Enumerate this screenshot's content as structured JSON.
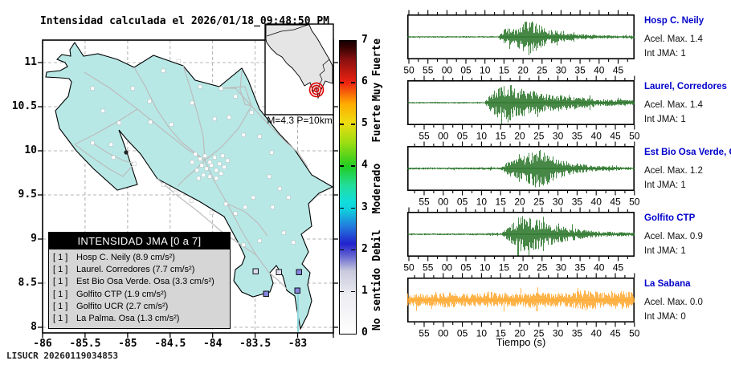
{
  "title": "Intensidad calculada el 2026/01/18_09:48:50_PM",
  "watermark": "LISUCR 20260119034853",
  "map": {
    "x_ticks": [
      "-86",
      "-85.5",
      "-85",
      "-84.5",
      "-84",
      "-83.5",
      "-83"
    ],
    "y_ticks": [
      "11",
      "10.5",
      "10",
      "9.5",
      "9",
      "8.5",
      "8"
    ],
    "land_color": "#b7e8e6",
    "road_color": "#bcbcbc",
    "inset": {
      "label": "M=4.3 P=10km",
      "epicenter_color": "#dd0000",
      "land_color": "#e5e5e5"
    },
    "legend": {
      "title": "INTENSIDAD JMA [0 a 7]",
      "entries": [
        {
          "tag": "[ 1 ]",
          "text": "Hosp C. Neily (8.9 cm/s²)"
        },
        {
          "tag": "[ 1 ]",
          "text": "Laurel. Corredores (7.7 cm/s²)"
        },
        {
          "tag": "[ 1 ]",
          "text": "Est Bio Osa Verde. Osa (3.3 cm/s²)"
        },
        {
          "tag": "[ 1 ]",
          "text": "Golfito CTP (1.9 cm/s²)"
        },
        {
          "tag": "[ 1 ]",
          "text": "Golfito UCR (2.7 cm/s²)"
        },
        {
          "tag": "[ 1 ]",
          "text": "La Palma. Osa (1.3 cm/s²)"
        }
      ]
    },
    "colorbar": {
      "ticks": [
        "0",
        "1",
        "2",
        "3",
        "4",
        "5",
        "6",
        "7"
      ],
      "level_labels": [
        {
          "text": "No sentido",
          "value": 0.8
        },
        {
          "text": "Debil",
          "value": 2.1
        },
        {
          "text": "Moderado",
          "value": 3.45
        },
        {
          "text": "Fuerte",
          "value": 5.0
        },
        {
          "text": "Muy Fuerte",
          "value": 6.3
        }
      ],
      "stops": [
        [
          "#ffffff",
          0
        ],
        [
          "#ededf2",
          0.9
        ],
        [
          "#c9c9dd",
          1.5
        ],
        [
          "#5a5ad0",
          1.9
        ],
        [
          "#2222cc",
          2.15
        ],
        [
          "#2277dd",
          2.55
        ],
        [
          "#11ccdd",
          2.95
        ],
        [
          "#11dddd",
          3.15
        ],
        [
          "#22dd99",
          3.55
        ],
        [
          "#22cc22",
          4.0
        ],
        [
          "#99dd11",
          4.55
        ],
        [
          "#eedd11",
          5.05
        ],
        [
          "#ffaa00",
          5.5
        ],
        [
          "#ee2211",
          6.0
        ],
        [
          "#8a1010",
          6.55
        ],
        [
          "#330202",
          6.85
        ],
        [
          "#160000",
          7
        ]
      ]
    },
    "station_markers": {
      "white": [
        [
          62,
          60
        ],
        [
          112,
          60
        ],
        [
          169,
          26
        ],
        [
          222,
          60
        ],
        [
          150,
          38
        ],
        [
          196,
          58
        ],
        [
          75,
          88
        ],
        [
          95,
          103
        ],
        [
          133,
          76
        ],
        [
          160,
          105
        ],
        [
          186,
          78
        ],
        [
          214,
          98
        ],
        [
          62,
          128
        ],
        [
          88,
          146
        ],
        [
          85,
          130
        ],
        [
          134,
          102
        ],
        [
          232,
          96
        ],
        [
          250,
          118
        ],
        [
          114,
          154
        ],
        [
          150,
          180
        ],
        [
          165,
          190
        ],
        [
          185,
          200
        ],
        [
          210,
          215
        ],
        [
          240,
          70
        ],
        [
          260,
          90
        ],
        [
          270,
          120
        ],
        [
          285,
          140
        ],
        [
          190,
          142
        ],
        [
          196,
          148
        ],
        [
          202,
          144
        ],
        [
          208,
          152
        ],
        [
          214,
          146
        ],
        [
          220,
          154
        ],
        [
          198,
          156
        ],
        [
          204,
          160
        ],
        [
          210,
          156
        ],
        [
          216,
          162
        ],
        [
          192,
          162
        ],
        [
          200,
          168
        ],
        [
          208,
          170
        ],
        [
          216,
          172
        ],
        [
          222,
          166
        ],
        [
          226,
          158
        ],
        [
          230,
          150
        ],
        [
          224,
          144
        ],
        [
          186,
          152
        ],
        [
          194,
          172
        ],
        [
          282,
          170
        ],
        [
          295,
          185
        ],
        [
          306,
          196
        ],
        [
          286,
          208
        ],
        [
          262,
          196
        ],
        [
          252,
          208
        ],
        [
          240,
          216
        ],
        [
          228,
          204
        ],
        [
          300,
          240
        ],
        [
          312,
          252
        ],
        [
          270,
          250
        ],
        [
          250,
          255
        ]
      ],
      "colored": [
        {
          "x": 265,
          "y": 288,
          "color": "#dcdcee"
        },
        {
          "x": 294,
          "y": 289,
          "color": "#dcdcee"
        },
        {
          "x": 319,
          "y": 289,
          "color": "#8585dd"
        },
        {
          "x": 278,
          "y": 316,
          "color": "#8585dd"
        },
        {
          "x": 317,
          "y": 312,
          "color": "#8585dd"
        }
      ]
    }
  },
  "waveforms": {
    "xlabel": "Tiempo (s)",
    "panels": [
      {
        "station": "Hosp C. Neily",
        "acel": "Acel. Max. 1.4",
        "int": "Int JMA: 1",
        "color": "#1a6b1a",
        "ticks": [
          "50",
          "55",
          "00",
          "05",
          "10",
          "15",
          "20",
          "25",
          "30",
          "35",
          "40",
          "45"
        ],
        "tick_style": "A",
        "seed": 11,
        "half": 26,
        "env": [
          [
            0,
            0.04
          ],
          [
            0.4,
            0.04
          ],
          [
            0.43,
            0.45
          ],
          [
            0.47,
            0.38
          ],
          [
            0.5,
            0.7
          ],
          [
            0.52,
            1.0
          ],
          [
            0.56,
            0.7
          ],
          [
            0.61,
            0.42
          ],
          [
            0.67,
            0.28
          ],
          [
            0.74,
            0.15
          ],
          [
            0.84,
            0.09
          ],
          [
            1,
            0.07
          ]
        ]
      },
      {
        "station": "Laurel, Corredores",
        "acel": "Acel. Max. 1.4",
        "int": "Int JMA: 1",
        "color": "#1a6b1a",
        "ticks": [
          "55",
          "00",
          "05",
          "10",
          "15",
          "20",
          "25",
          "30",
          "35",
          "40",
          "45",
          "50"
        ],
        "tick_style": "B",
        "seed": 22,
        "half": 25,
        "env": [
          [
            0,
            0.04
          ],
          [
            0.34,
            0.04
          ],
          [
            0.37,
            0.55
          ],
          [
            0.41,
            0.85
          ],
          [
            0.44,
            1.0
          ],
          [
            0.48,
            0.72
          ],
          [
            0.53,
            0.72
          ],
          [
            0.58,
            0.5
          ],
          [
            0.64,
            0.45
          ],
          [
            0.7,
            0.4
          ],
          [
            0.78,
            0.26
          ],
          [
            0.88,
            0.17
          ],
          [
            1,
            0.13
          ]
        ]
      },
      {
        "station": "Est Bio Osa Verde, Osa",
        "acel": "Acel. Max. 1.2",
        "int": "Int JMA: 1",
        "color": "#1a6b1a",
        "ticks": [
          "55",
          "00",
          "05",
          "10",
          "15",
          "20",
          "25",
          "30",
          "35",
          "40",
          "45",
          "50"
        ],
        "tick_style": "B",
        "seed": 33,
        "half": 26,
        "env": [
          [
            0,
            0.05
          ],
          [
            0.41,
            0.06
          ],
          [
            0.45,
            0.38
          ],
          [
            0.5,
            0.55
          ],
          [
            0.54,
            0.8
          ],
          [
            0.57,
            1.0
          ],
          [
            0.61,
            0.75
          ],
          [
            0.66,
            0.5
          ],
          [
            0.72,
            0.3
          ],
          [
            0.8,
            0.16
          ],
          [
            0.9,
            0.09
          ],
          [
            1,
            0.07
          ]
        ]
      },
      {
        "station": "Golfito CTP",
        "acel": "Acel. Max. 0.9",
        "int": "Int JMA: 1",
        "color": "#1a6b1a",
        "ticks": [
          "50",
          "55",
          "00",
          "05",
          "10",
          "15",
          "20",
          "25",
          "30",
          "35",
          "40",
          "45"
        ],
        "tick_style": "A",
        "seed": 44,
        "half": 26,
        "env": [
          [
            0,
            0.04
          ],
          [
            0.41,
            0.05
          ],
          [
            0.45,
            0.42
          ],
          [
            0.49,
            0.75
          ],
          [
            0.52,
            1.0
          ],
          [
            0.56,
            0.78
          ],
          [
            0.61,
            0.58
          ],
          [
            0.67,
            0.42
          ],
          [
            0.74,
            0.28
          ],
          [
            0.82,
            0.16
          ],
          [
            0.92,
            0.11
          ],
          [
            1,
            0.09
          ]
        ]
      },
      {
        "station": "La Sabana",
        "acel": "Acel. Max. 0.0",
        "int": "Int JMA: 0",
        "color": "#ffa21e",
        "ticks": [
          "55",
          "00",
          "05",
          "10",
          "15",
          "20",
          "25",
          "30",
          "35",
          "40",
          "45",
          "50"
        ],
        "tick_style": "B",
        "seed": 55,
        "half": 18,
        "env": [
          [
            0,
            0.5
          ],
          [
            0.08,
            0.42
          ],
          [
            0.18,
            0.55
          ],
          [
            0.28,
            0.42
          ],
          [
            0.36,
            0.6
          ],
          [
            0.46,
            0.44
          ],
          [
            0.56,
            0.65
          ],
          [
            0.64,
            0.48
          ],
          [
            0.72,
            0.55
          ],
          [
            0.79,
            0.75
          ],
          [
            0.85,
            0.55
          ],
          [
            0.92,
            0.68
          ],
          [
            1,
            0.52
          ]
        ]
      }
    ]
  },
  "chart_data": [
    {
      "type": "map",
      "subtype": "seismic-intensity-map",
      "title": "Intensidad calculada el 2026/01/18_09:48:50_PM",
      "region": "Costa Rica",
      "lon_ticks": [
        -86,
        -85.5,
        -85,
        -84.5,
        -84,
        -83.5,
        -83
      ],
      "lat_ticks": [
        8,
        8.5,
        9,
        9.5,
        10,
        10.5,
        11
      ],
      "event": {
        "magnitude": 4.3,
        "depth_km": 10
      },
      "colorbar": {
        "range": [
          0,
          7
        ],
        "categories": [
          "No sentido",
          "Debil",
          "Moderado",
          "Fuerte",
          "Muy Fuerte"
        ]
      },
      "stations": [
        {
          "name": "Hosp C. Neily",
          "int_jma": 1,
          "accel_cm_s2": 8.9
        },
        {
          "name": "Laurel. Corredores",
          "int_jma": 1,
          "accel_cm_s2": 7.7
        },
        {
          "name": "Est Bio Osa Verde. Osa",
          "int_jma": 1,
          "accel_cm_s2": 3.3
        },
        {
          "name": "Golfito CTP",
          "int_jma": 1,
          "accel_cm_s2": 1.9
        },
        {
          "name": "Golfito UCR",
          "int_jma": 1,
          "accel_cm_s2": 2.7
        },
        {
          "name": "La Palma. Osa",
          "int_jma": 1,
          "accel_cm_s2": 1.3
        }
      ]
    },
    {
      "type": "line",
      "subtype": "seismograms",
      "xlabel": "Tiempo (s)",
      "panels": [
        {
          "station": "Hosp C. Neily",
          "acel_max": 1.4,
          "int_jma": 1,
          "x_tick_labels": [
            "50",
            "55",
            "00",
            "05",
            "10",
            "15",
            "20",
            "25",
            "30",
            "35",
            "40",
            "45"
          ],
          "signal_window_s": [
            15,
            35
          ]
        },
        {
          "station": "Laurel, Corredores",
          "acel_max": 1.4,
          "int_jma": 1,
          "x_tick_labels": [
            "55",
            "00",
            "05",
            "10",
            "15",
            "20",
            "25",
            "30",
            "35",
            "40",
            "45",
            "50"
          ],
          "signal_window_s": [
            13,
            45
          ]
        },
        {
          "station": "Est Bio Osa Verde, Osa",
          "acel_max": 1.2,
          "int_jma": 1,
          "x_tick_labels": [
            "55",
            "00",
            "05",
            "10",
            "15",
            "20",
            "25",
            "30",
            "35",
            "40",
            "45",
            "50"
          ],
          "signal_window_s": [
            17,
            40
          ]
        },
        {
          "station": "Golfito CTP",
          "acel_max": 0.9,
          "int_jma": 1,
          "x_tick_labels": [
            "50",
            "55",
            "00",
            "05",
            "10",
            "15",
            "20",
            "25",
            "30",
            "35",
            "40",
            "45"
          ],
          "signal_window_s": [
            15,
            40
          ]
        },
        {
          "station": "La Sabana",
          "acel_max": 0.0,
          "int_jma": 0,
          "x_tick_labels": [
            "55",
            "00",
            "05",
            "10",
            "15",
            "20",
            "25",
            "30",
            "35",
            "40",
            "45",
            "50"
          ],
          "signal_window_s": null
        }
      ]
    }
  ]
}
